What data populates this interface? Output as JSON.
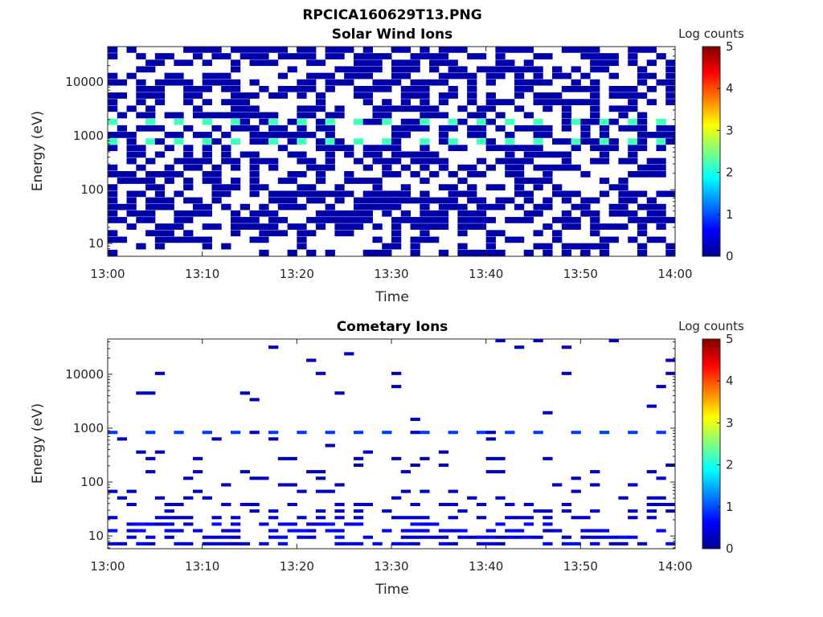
{
  "figure_title": "RPCICA160629T13.PNG",
  "chart_data": [
    {
      "type": "heatmap",
      "title": "Solar Wind Ions",
      "xlabel": "Time",
      "ylabel": "Energy (eV)",
      "x_range": [
        "13:00",
        "14:00"
      ],
      "x_ticks": [
        "13:00",
        "13:10",
        "13:20",
        "13:30",
        "13:40",
        "13:50",
        "14:00"
      ],
      "y_range": [
        5.8,
        45000
      ],
      "y_scale": "log",
      "y_ticks": [
        "10",
        "100",
        "1000",
        "10000"
      ],
      "time_bins": 60,
      "energy_bins": 32,
      "colorbar_label": "Log counts",
      "colorbar_ticks": [
        "0",
        "1",
        "2",
        "3",
        "4",
        "5"
      ],
      "colorbar_range": [
        0,
        5
      ],
      "colormap": "jet",
      "peak_energy_eV": [
        800,
        1700
      ],
      "peak_log_counts": 2.2,
      "background_log_counts": 0.2,
      "peak_period_minutes": 3.2
    },
    {
      "type": "heatmap",
      "title": "Cometary Ions",
      "xlabel": "Time",
      "ylabel": "Energy (eV)",
      "x_range": [
        "13:00",
        "14:00"
      ],
      "x_ticks": [
        "13:00",
        "13:10",
        "13:20",
        "13:30",
        "13:40",
        "13:50",
        "14:00"
      ],
      "y_range": [
        5.8,
        45000
      ],
      "y_scale": "log",
      "y_ticks": [
        "10",
        "100",
        "1000",
        "10000"
      ],
      "time_bins": 60,
      "energy_bins": 32,
      "colorbar_label": "Log counts",
      "colorbar_ticks": [
        "0",
        "1",
        "2",
        "3",
        "4",
        "5"
      ],
      "colorbar_range": [
        0,
        5
      ],
      "colormap": "jet",
      "peak_energy_eV": [
        800
      ],
      "peak_log_counts": 0.9,
      "background_log_counts": 0.3,
      "peak_period_minutes": 3.2
    }
  ]
}
